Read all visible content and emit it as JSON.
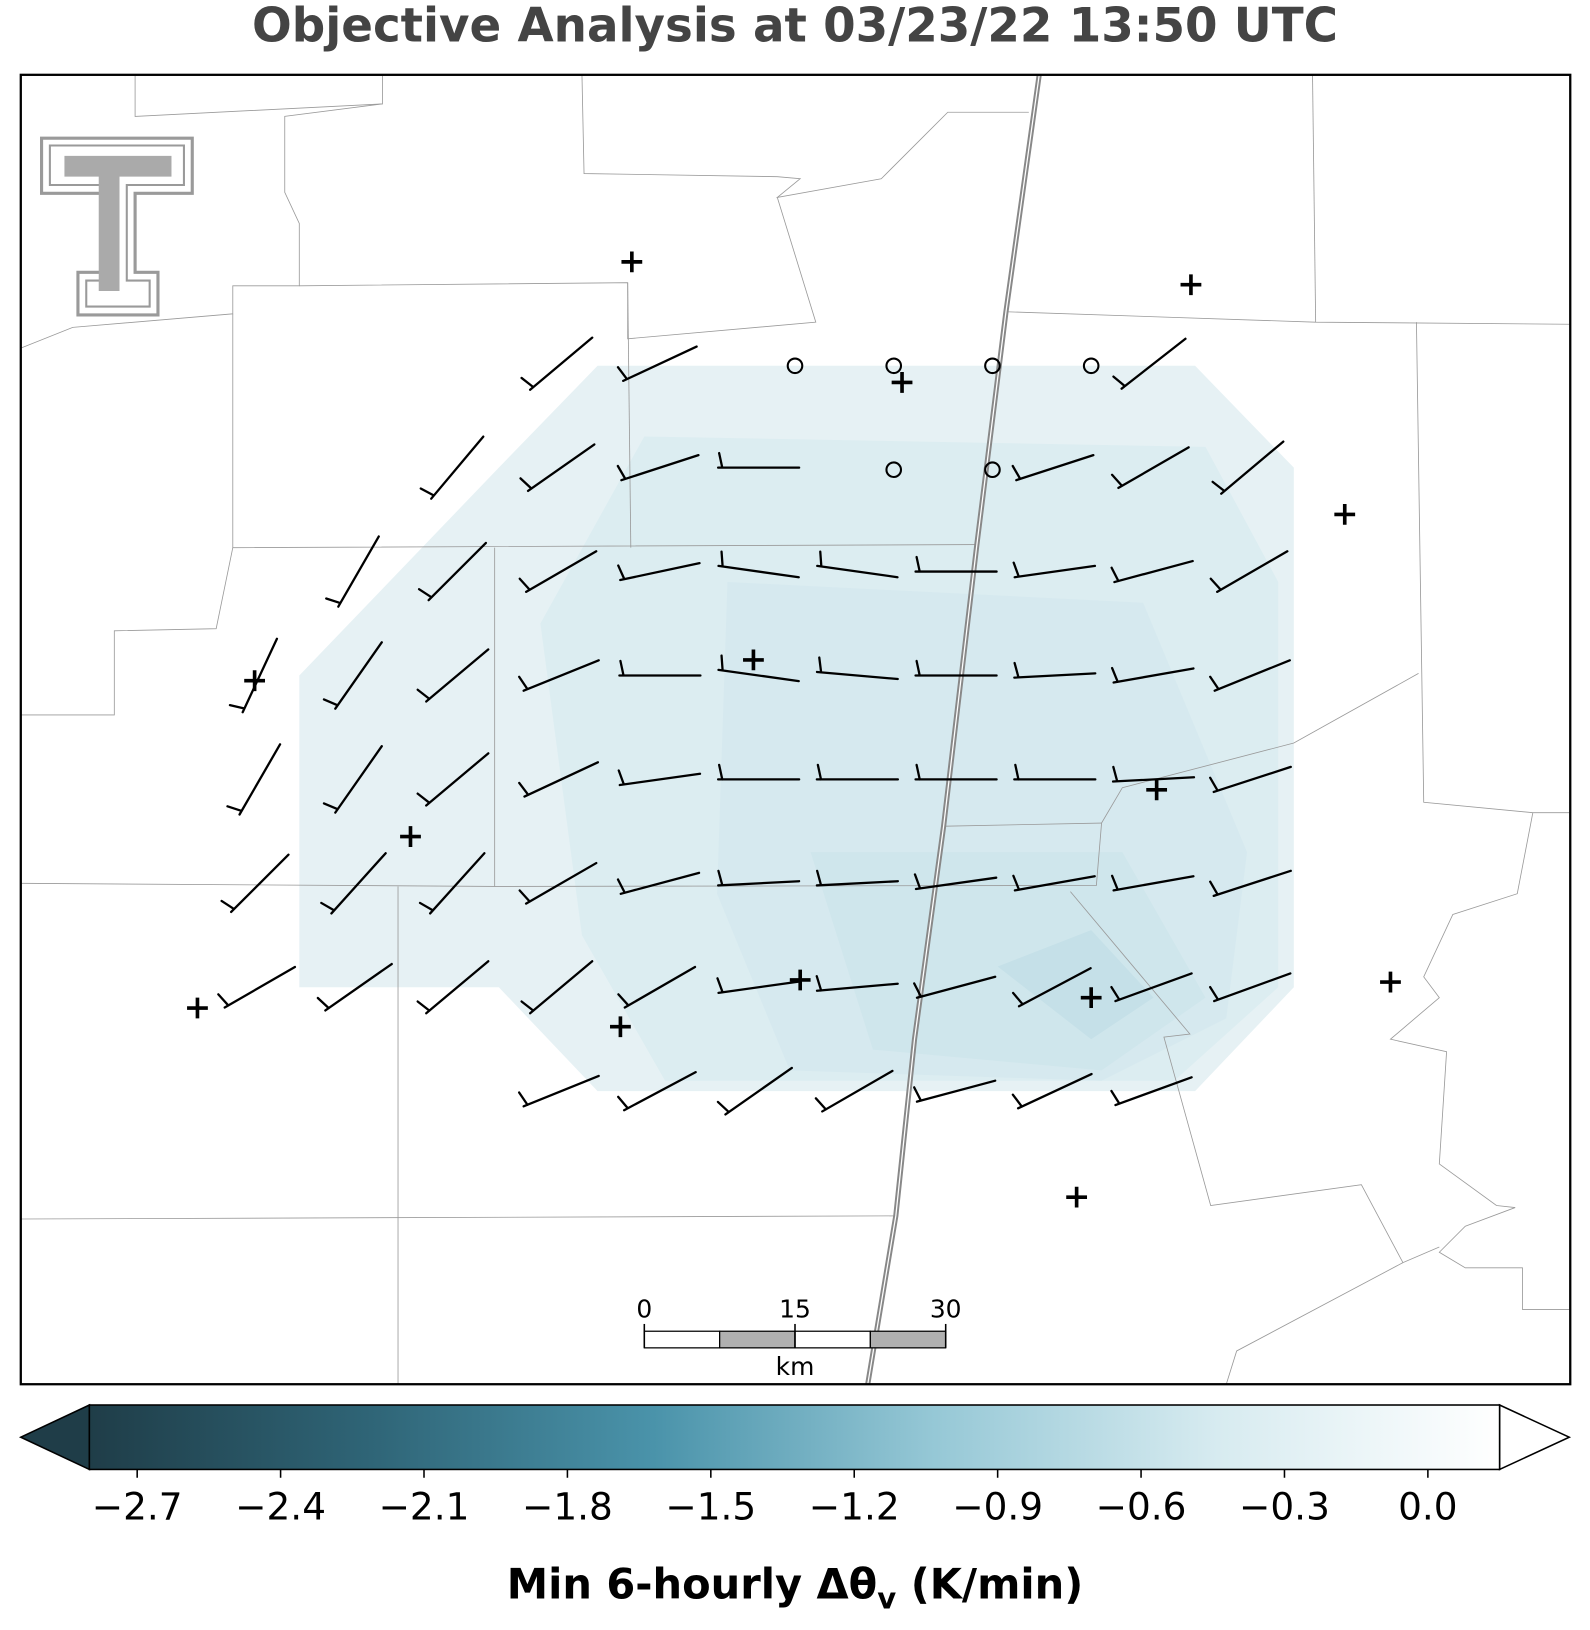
{
  "title": "Objective Analysis at 03/23/22 13:50 UTC",
  "scale_bar": {
    "ticks": [
      0,
      15,
      30
    ],
    "unit": "km"
  },
  "colorbar": {
    "label": {
      "main": "Min 6-hourly Δθ",
      "subscript": "v",
      "unit": "(K/min)"
    },
    "clim": [
      -2.8,
      0.15
    ],
    "colors": [
      "#1f3d48",
      "#2f6577",
      "#4a93aa",
      "#96c8d6",
      "#d7ebf0",
      "#ffffff"
    ],
    "ticks": [
      {
        "value": -2.7,
        "label": "−2.7"
      },
      {
        "value": -2.4,
        "label": "−2.4"
      },
      {
        "value": -2.1,
        "label": "−2.1"
      },
      {
        "value": -1.8,
        "label": "−1.8"
      },
      {
        "value": -1.5,
        "label": "−1.5"
      },
      {
        "value": -1.2,
        "label": "−1.2"
      },
      {
        "value": -0.9,
        "label": "−0.9"
      },
      {
        "value": -0.6,
        "label": "−0.6"
      },
      {
        "value": -0.3,
        "label": "−0.3"
      },
      {
        "value": 0.0,
        "label": "0.0"
      }
    ]
  }
}
